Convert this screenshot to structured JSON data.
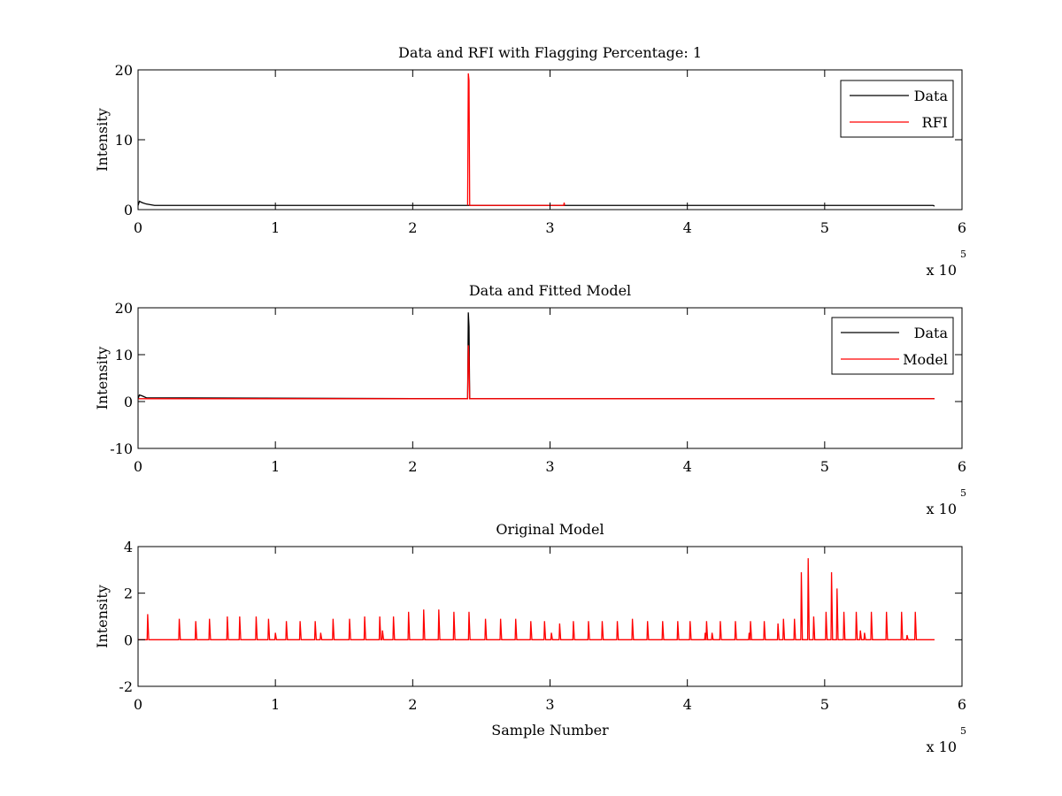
{
  "chart_data": [
    {
      "type": "line",
      "title": "Data and RFI with Flagging Percentage: 1",
      "xlabel": "",
      "ylabel": "Intensity",
      "xlim": [
        0,
        600000
      ],
      "ylim": [
        0,
        20
      ],
      "xticks": [
        "0",
        "1",
        "2",
        "3",
        "4",
        "5",
        "6"
      ],
      "yticks": [
        "0",
        "10",
        "20"
      ],
      "x_multiplier": {
        "base": "x 10",
        "exponent": "5"
      },
      "grid": false,
      "legend_position": "top-right",
      "series": [
        {
          "name": "Data",
          "color": "#000000",
          "baseline": 0.6,
          "points": [
            [
              0,
              0.6
            ],
            [
              1000,
              1.2
            ],
            [
              3000,
              1.0
            ],
            [
              6000,
              0.8
            ],
            [
              12000,
              0.6
            ],
            [
              579000,
              0.6
            ],
            [
              580000,
              0.5
            ]
          ]
        },
        {
          "name": "RFI",
          "color": "#ff0000",
          "baseline": 0.6,
          "points": [
            [
              240000,
              0.6
            ],
            [
              240500,
              19.5
            ],
            [
              241000,
              18.5
            ],
            [
              241500,
              0.6
            ],
            [
              310000,
              0.6
            ],
            [
              310300,
              1.0
            ],
            [
              310600,
              0.6
            ]
          ]
        }
      ]
    },
    {
      "type": "line",
      "title": "Data and Fitted Model",
      "xlabel": "",
      "ylabel": "Intensity",
      "xlim": [
        0,
        600000
      ],
      "ylim": [
        -10,
        20
      ],
      "xticks": [
        "0",
        "1",
        "2",
        "3",
        "4",
        "5",
        "6"
      ],
      "yticks": [
        "-10",
        "0",
        "10",
        "20"
      ],
      "x_multiplier": {
        "base": "x 10",
        "exponent": "5"
      },
      "grid": false,
      "legend_position": "top-right",
      "series": [
        {
          "name": "Data",
          "color": "#000000",
          "baseline": 0.6,
          "points": [
            [
              0,
              0.6
            ],
            [
              1000,
              1.4
            ],
            [
              3000,
              1.2
            ],
            [
              6000,
              0.8
            ],
            [
              240000,
              0.6
            ],
            [
              240500,
              19.0
            ],
            [
              241000,
              16.0
            ],
            [
              241500,
              0.6
            ],
            [
              580000,
              0.6
            ]
          ]
        },
        {
          "name": "Model",
          "color": "#ff0000",
          "baseline": 0.6,
          "points": [
            [
              0,
              0.6
            ],
            [
              240000,
              0.6
            ],
            [
              240500,
              12.0
            ],
            [
              241000,
              9.0
            ],
            [
              241500,
              0.6
            ],
            [
              580000,
              0.6
            ]
          ]
        }
      ]
    },
    {
      "type": "line",
      "title": "Original Model",
      "xlabel": "Sample Number",
      "ylabel": "Intensity",
      "xlim": [
        0,
        600000
      ],
      "ylim": [
        -2,
        4
      ],
      "xticks": [
        "0",
        "1",
        "2",
        "3",
        "4",
        "5",
        "6"
      ],
      "yticks": [
        "-2",
        "0",
        "2",
        "4"
      ],
      "x_multiplier": {
        "base": "x 10",
        "exponent": "5"
      },
      "grid": false,
      "legend_position": "none",
      "series": [
        {
          "color": "#ff0000",
          "baseline": 0,
          "x_range": [
            0,
            580000
          ],
          "peaks": [
            [
              7000,
              1.1
            ],
            [
              30000,
              0.9
            ],
            [
              42000,
              0.8
            ],
            [
              52000,
              0.9
            ],
            [
              65000,
              1.0
            ],
            [
              74000,
              1.0
            ],
            [
              86000,
              1.0
            ],
            [
              95000,
              0.9
            ],
            [
              108000,
              0.8
            ],
            [
              118000,
              0.8
            ],
            [
              129000,
              0.8
            ],
            [
              142000,
              0.9
            ],
            [
              154000,
              0.9
            ],
            [
              165000,
              1.0
            ],
            [
              176000,
              1.0
            ],
            [
              186000,
              1.0
            ],
            [
              197000,
              1.2
            ],
            [
              208000,
              1.3
            ],
            [
              219000,
              1.3
            ],
            [
              230000,
              1.2
            ],
            [
              241000,
              1.2
            ],
            [
              253000,
              0.9
            ],
            [
              264000,
              0.9
            ],
            [
              275000,
              0.9
            ],
            [
              286000,
              0.8
            ],
            [
              296000,
              0.8
            ],
            [
              307000,
              0.7
            ],
            [
              317000,
              0.8
            ],
            [
              328000,
              0.8
            ],
            [
              338000,
              0.8
            ],
            [
              349000,
              0.8
            ],
            [
              360000,
              0.9
            ],
            [
              371000,
              0.8
            ],
            [
              382000,
              0.8
            ],
            [
              393000,
              0.8
            ],
            [
              402000,
              0.8
            ],
            [
              414000,
              0.8
            ],
            [
              424000,
              0.8
            ],
            [
              435000,
              0.8
            ],
            [
              446000,
              0.8
            ],
            [
              456000,
              0.8
            ],
            [
              466000,
              0.7
            ],
            [
              470000,
              0.9
            ],
            [
              478000,
              0.9
            ],
            [
              483000,
              2.9
            ],
            [
              488000,
              3.5
            ],
            [
              492000,
              1.0
            ],
            [
              501000,
              1.2
            ],
            [
              505000,
              2.9
            ],
            [
              509000,
              2.2
            ],
            [
              514000,
              1.2
            ],
            [
              523000,
              1.2
            ],
            [
              534000,
              1.2
            ],
            [
              545000,
              1.2
            ],
            [
              556000,
              1.2
            ],
            [
              566000,
              1.2
            ]
          ],
          "minor_peaks": [
            [
              100000,
              0.3
            ],
            [
              133000,
              0.3
            ],
            [
              178000,
              0.4
            ],
            [
              301000,
              0.3
            ],
            [
              413000,
              0.3
            ],
            [
              418000,
              0.3
            ],
            [
              445000,
              0.3
            ],
            [
              526000,
              0.4
            ],
            [
              529000,
              0.3
            ],
            [
              560000,
              0.2
            ]
          ]
        }
      ]
    }
  ]
}
